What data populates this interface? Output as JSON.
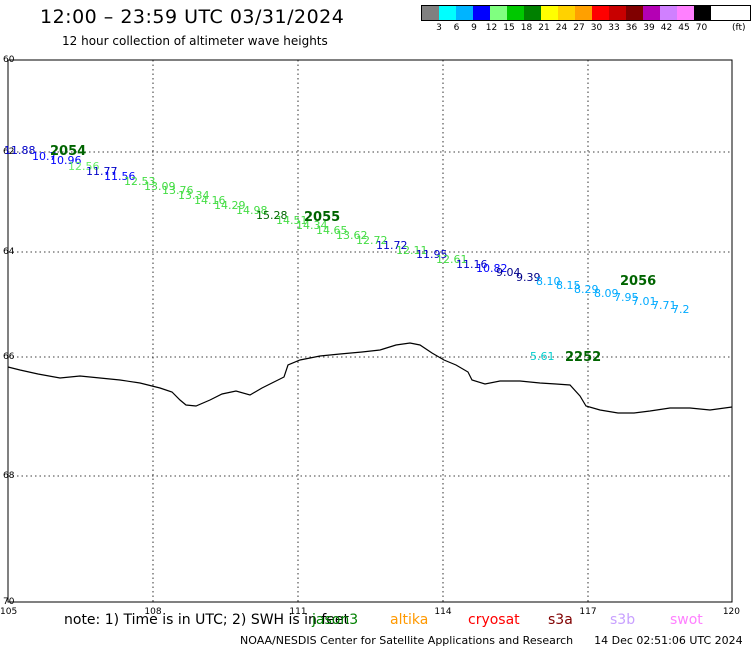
{
  "header": {
    "title": "12:00 – 23:59 UTC 03/31/2024",
    "subtitle": "12 hour collection of altimeter wave heights"
  },
  "legend": {
    "colors": [
      "#808080",
      "#00ffff",
      "#00b4ff",
      "#0000ff",
      "#80ff80",
      "#00c800",
      "#008000",
      "#ffff00",
      "#ffd200",
      "#ffa000",
      "#ff0000",
      "#c80000",
      "#800000",
      "#b400b4",
      "#d080ff",
      "#ff80ff",
      "#000000"
    ],
    "labels": [
      "3",
      "6",
      "9",
      "12",
      "15",
      "18",
      "21",
      "24",
      "27",
      "30",
      "33",
      "36",
      "39",
      "42",
      "45",
      "70"
    ],
    "unit": "(ft)"
  },
  "axes": {
    "lon_ticks": [
      "105",
      "108",
      "111",
      "114",
      "117",
      "120"
    ],
    "lat_ticks": [
      "60",
      "62",
      "64",
      "66",
      "68",
      "70"
    ]
  },
  "passes": [
    {
      "label": "2054",
      "color": "#006400"
    },
    {
      "label": "2055",
      "color": "#006400"
    },
    {
      "label": "2056",
      "color": "#006400"
    },
    {
      "label": "2252",
      "color": "#006400"
    }
  ],
  "track_a": [
    {
      "text": "11.88",
      "color": "#0000c8"
    },
    {
      "text": "10.7",
      "color": "#0000ff"
    },
    {
      "text": "10.96",
      "color": "#0000ff"
    },
    {
      "text": "12.56",
      "color": "#66ee66"
    },
    {
      "text": "11.77",
      "color": "#0000c8"
    },
    {
      "text": "11.56",
      "color": "#0000ff"
    },
    {
      "text": "12.53",
      "color": "#44dd44"
    },
    {
      "text": "13.09",
      "color": "#44dd44"
    },
    {
      "text": "13.76",
      "color": "#44dd44"
    },
    {
      "text": "13.34",
      "color": "#44dd44"
    },
    {
      "text": "14.16",
      "color": "#44dd44"
    },
    {
      "text": "14.29",
      "color": "#44dd44"
    },
    {
      "text": "14.98",
      "color": "#44dd44"
    },
    {
      "text": "15.28",
      "color": "#006400"
    },
    {
      "text": "14.51",
      "color": "#44dd44"
    },
    {
      "text": "14.34",
      "color": "#44dd44"
    },
    {
      "text": "14.65",
      "color": "#44dd44"
    },
    {
      "text": "13.62",
      "color": "#44dd44"
    },
    {
      "text": "12.72",
      "color": "#44dd44"
    },
    {
      "text": "11.72",
      "color": "#0000c8"
    },
    {
      "text": "12.11",
      "color": "#44dd44"
    },
    {
      "text": "11.95",
      "color": "#0000c8"
    },
    {
      "text": "12.61",
      "color": "#44dd44"
    },
    {
      "text": "11.16",
      "color": "#0000c8"
    },
    {
      "text": "10.82",
      "color": "#0000ff"
    },
    {
      "text": "9.04",
      "color": "#000088"
    },
    {
      "text": "9.39",
      "color": "#000088"
    },
    {
      "text": "8.10",
      "color": "#00aaff"
    },
    {
      "text": "8.15",
      "color": "#00aaff"
    },
    {
      "text": "8.29",
      "color": "#00aaff"
    },
    {
      "text": "8.09",
      "color": "#00aaff"
    },
    {
      "text": "7.95",
      "color": "#00aaff"
    },
    {
      "text": "7.01",
      "color": "#00aaff"
    },
    {
      "text": "7.71",
      "color": "#00aaff"
    },
    {
      "text": "7.2",
      "color": "#00aaff"
    }
  ],
  "track_b": [
    {
      "text": "5.61",
      "color": "#00cccc"
    }
  ],
  "note": {
    "text": "note: 1) Time is in UTC; 2) SWH is in feet",
    "satellites": [
      {
        "name": "jason3",
        "color": "#008000"
      },
      {
        "name": "altika",
        "color": "#ff9900"
      },
      {
        "name": "cryosat",
        "color": "#ff0000"
      },
      {
        "name": "s3a",
        "color": "#800000"
      },
      {
        "name": "s3b",
        "color": "#c8a0ff"
      },
      {
        "name": "swot",
        "color": "#ff80ff"
      }
    ]
  },
  "credit": "NOAA/NESDIS Center for Satellite Applications and Research",
  "timestamp": "14 Dec 02:51:06 UTC 2024"
}
